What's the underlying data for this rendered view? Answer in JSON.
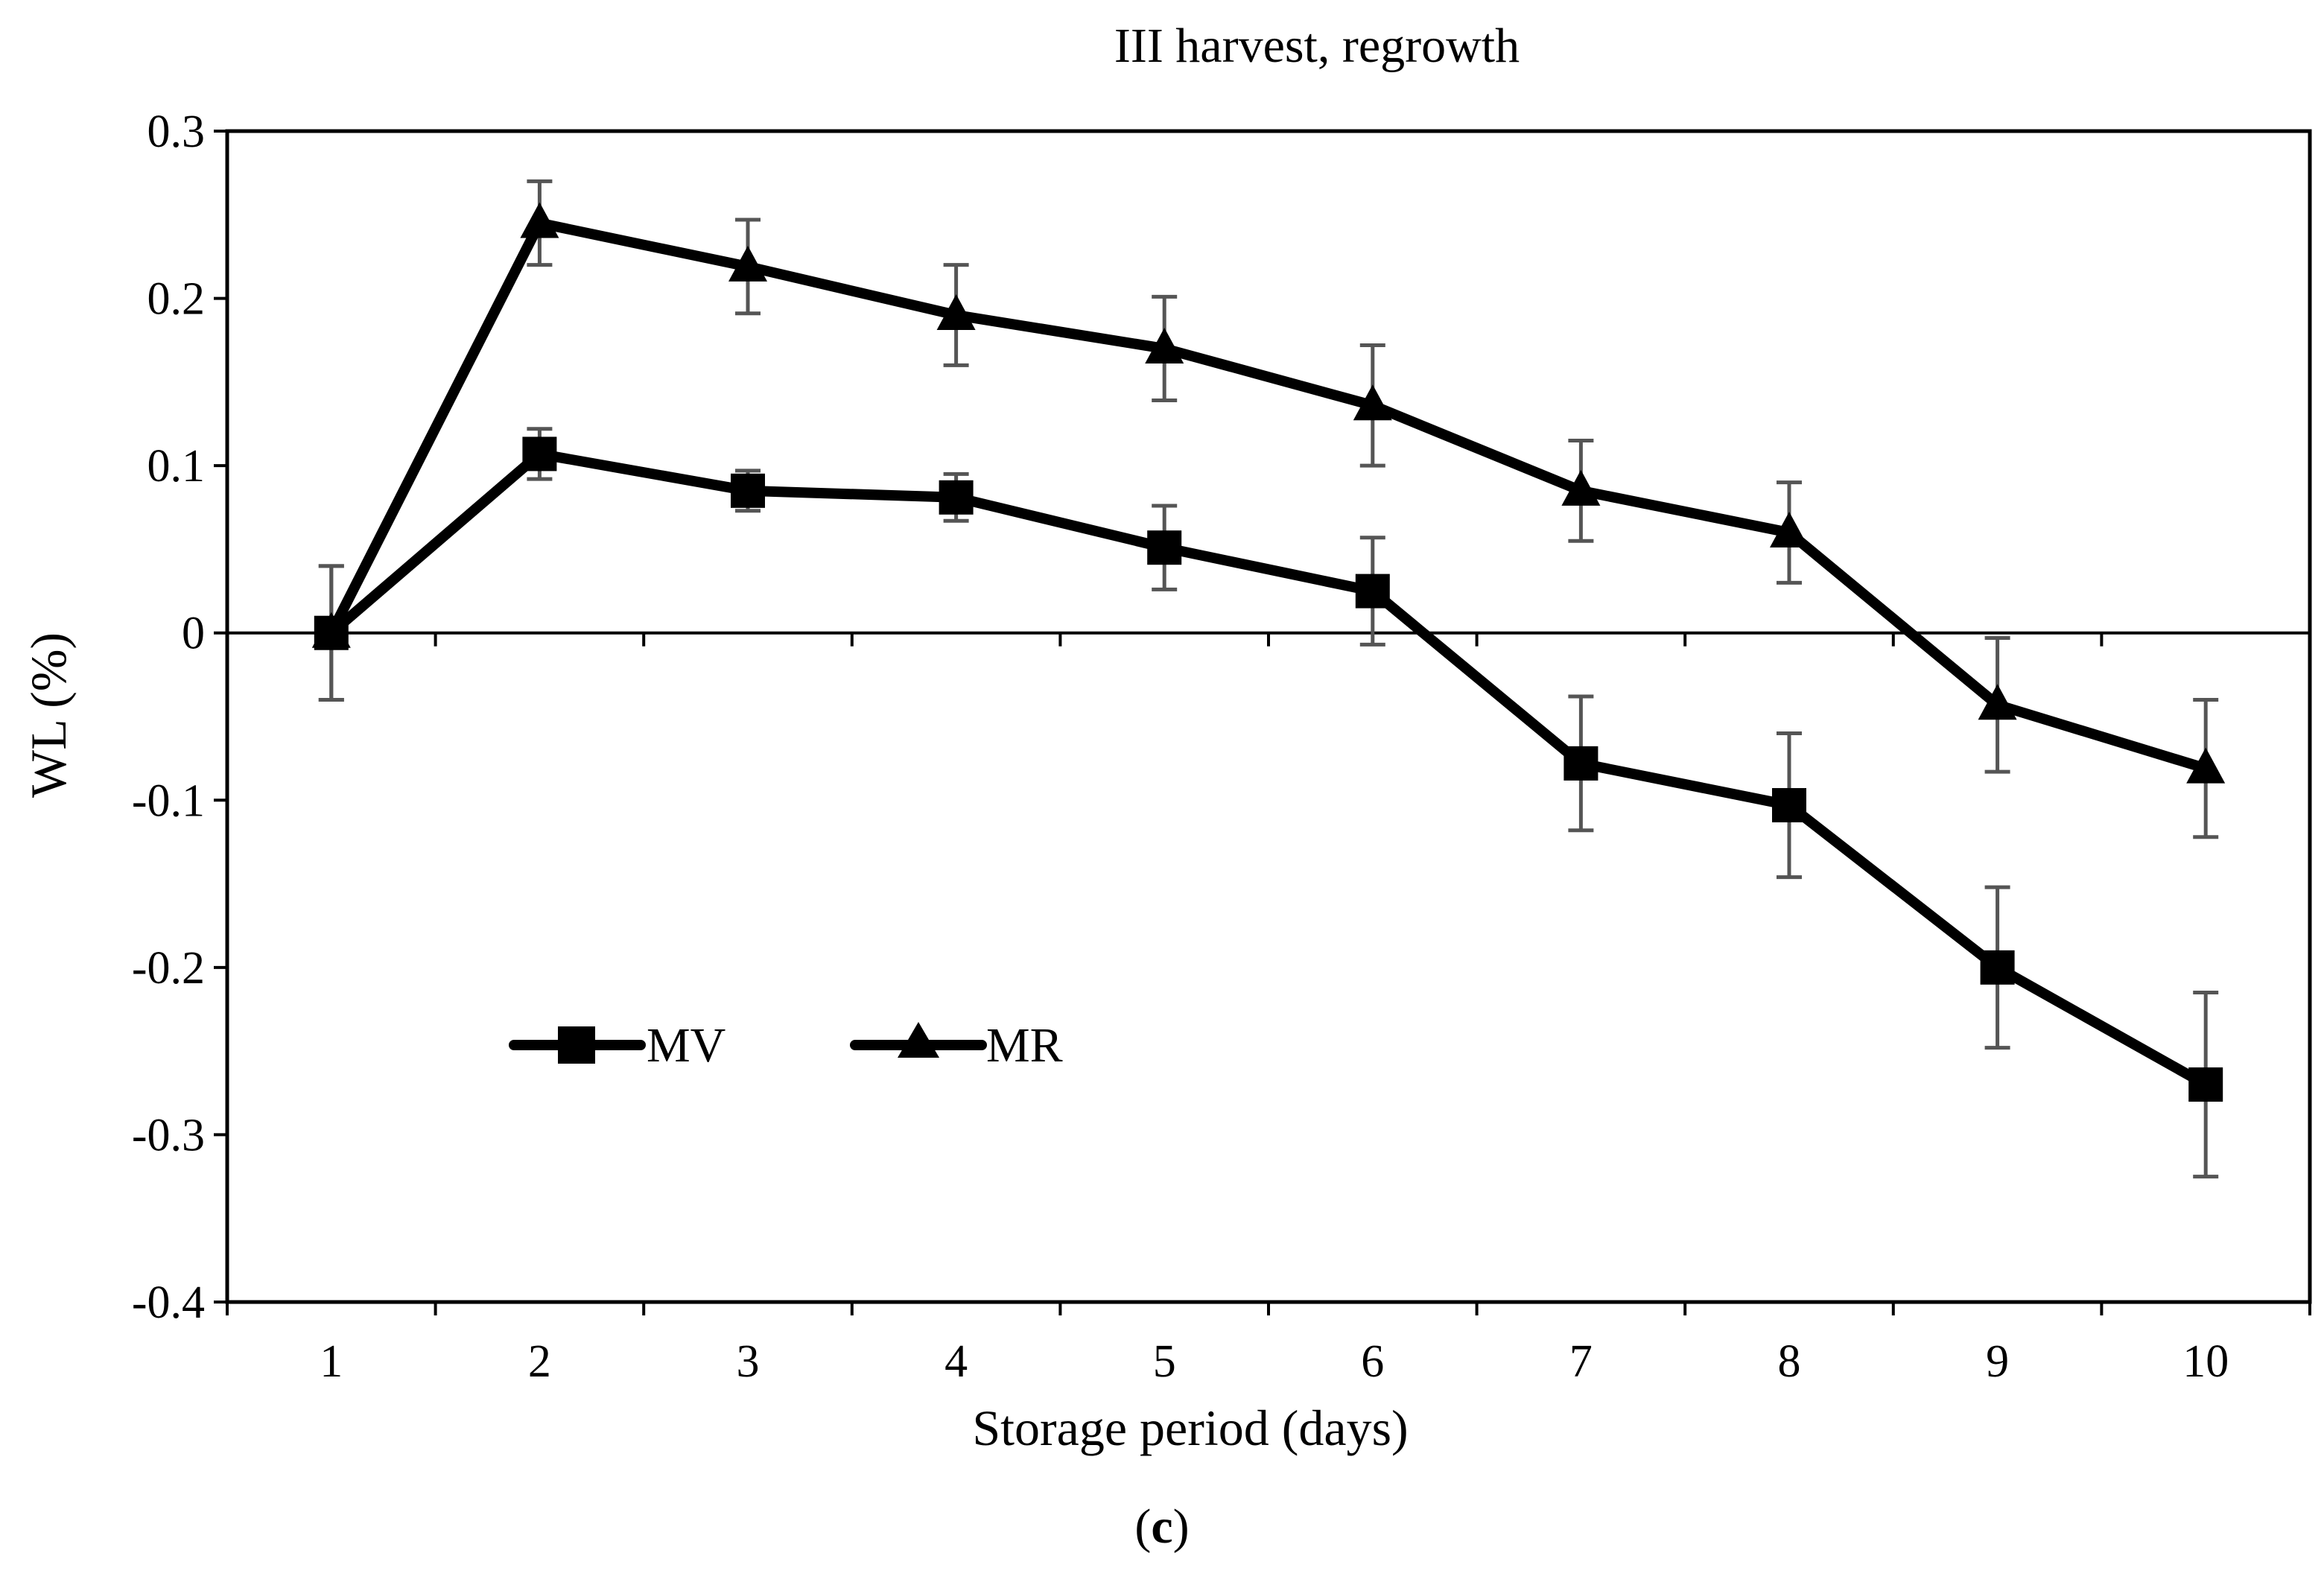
{
  "chart_data": {
    "type": "line",
    "title": "III harvest, regrowth",
    "xlabel": "Storage period (days)",
    "ylabel": "WL (%)",
    "categories": [
      "1",
      "2",
      "3",
      "4",
      "5",
      "6",
      "7",
      "8",
      "9",
      "10"
    ],
    "ylim": [
      -0.4,
      0.3
    ],
    "yticks": [
      "0.3",
      "0.2",
      "0.1",
      "0",
      "-0.1",
      "-0.2",
      "-0.3",
      "-0.4"
    ],
    "ytick_values": [
      0.3,
      0.2,
      0.1,
      0,
      -0.1,
      -0.2,
      -0.3,
      -0.4
    ],
    "series": [
      {
        "name": "MV",
        "marker": "square",
        "values": [
          0.0,
          0.107,
          0.085,
          0.081,
          0.051,
          0.025,
          -0.078,
          -0.103,
          -0.2,
          -0.27
        ],
        "errors": [
          0.04,
          0.015,
          0.012,
          0.014,
          0.025,
          0.032,
          0.04,
          0.043,
          0.048,
          0.055
        ]
      },
      {
        "name": "MR",
        "marker": "triangle",
        "values": [
          0.0,
          0.245,
          0.219,
          0.19,
          0.17,
          0.136,
          0.085,
          0.06,
          -0.043,
          -0.081
        ],
        "errors": [
          0.04,
          0.025,
          0.028,
          0.03,
          0.031,
          0.036,
          0.03,
          0.03,
          0.04,
          0.041
        ]
      }
    ],
    "legend": {
      "placement": "lower-left"
    },
    "grid": false
  },
  "panel_label": {
    "open": "(",
    "letter": "c",
    "close": ")"
  },
  "colors": {
    "line": "#000000",
    "errorbar": "#555555",
    "background": "#ffffff"
  }
}
